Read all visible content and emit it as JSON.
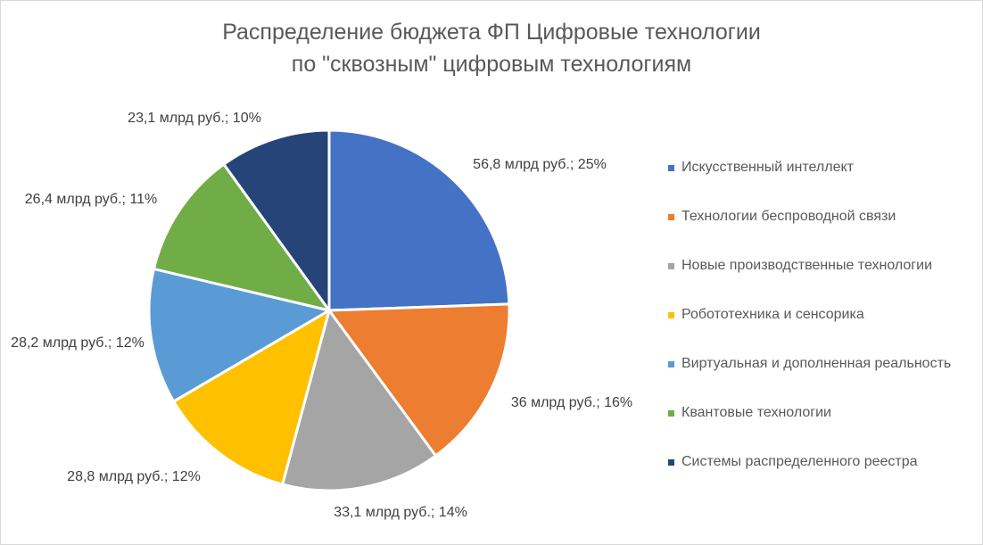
{
  "chart_data": {
    "type": "pie",
    "title": [
      "Распределение бюджета ФП Цифровые технологии",
      "по \"сквозным\" цифровым технологиям"
    ],
    "slices": [
      {
        "name": "Искусственный интеллект",
        "value": 56.8,
        "label": "56,8 млрд руб.; 25%",
        "color": "#4472C4"
      },
      {
        "name": "Технологии беспроводной связи",
        "value": 36.0,
        "label": "36 млрд руб.; 16%",
        "color": "#ED7D31"
      },
      {
        "name": "Новые производственные технологии",
        "value": 33.1,
        "label": "33,1 млрд руб.; 14%",
        "color": "#A5A5A5"
      },
      {
        "name": "Робототехника и сенсорика",
        "value": 28.8,
        "label": "28,8 млрд руб.; 12%",
        "color": "#FFC000"
      },
      {
        "name": "Виртуальная и дополненная реальность",
        "value": 28.2,
        "label": "28,2 млрд руб.; 12%",
        "color": "#5B9BD5"
      },
      {
        "name": "Квантовые технологии",
        "value": 26.4,
        "label": "26,4 млрд руб.; 11%",
        "color": "#70AD47"
      },
      {
        "name": "Системы распределенного реестра",
        "value": 23.1,
        "label": "23,1 млрд руб.; 10%",
        "color": "#264478"
      }
    ],
    "legend_position": "right"
  }
}
